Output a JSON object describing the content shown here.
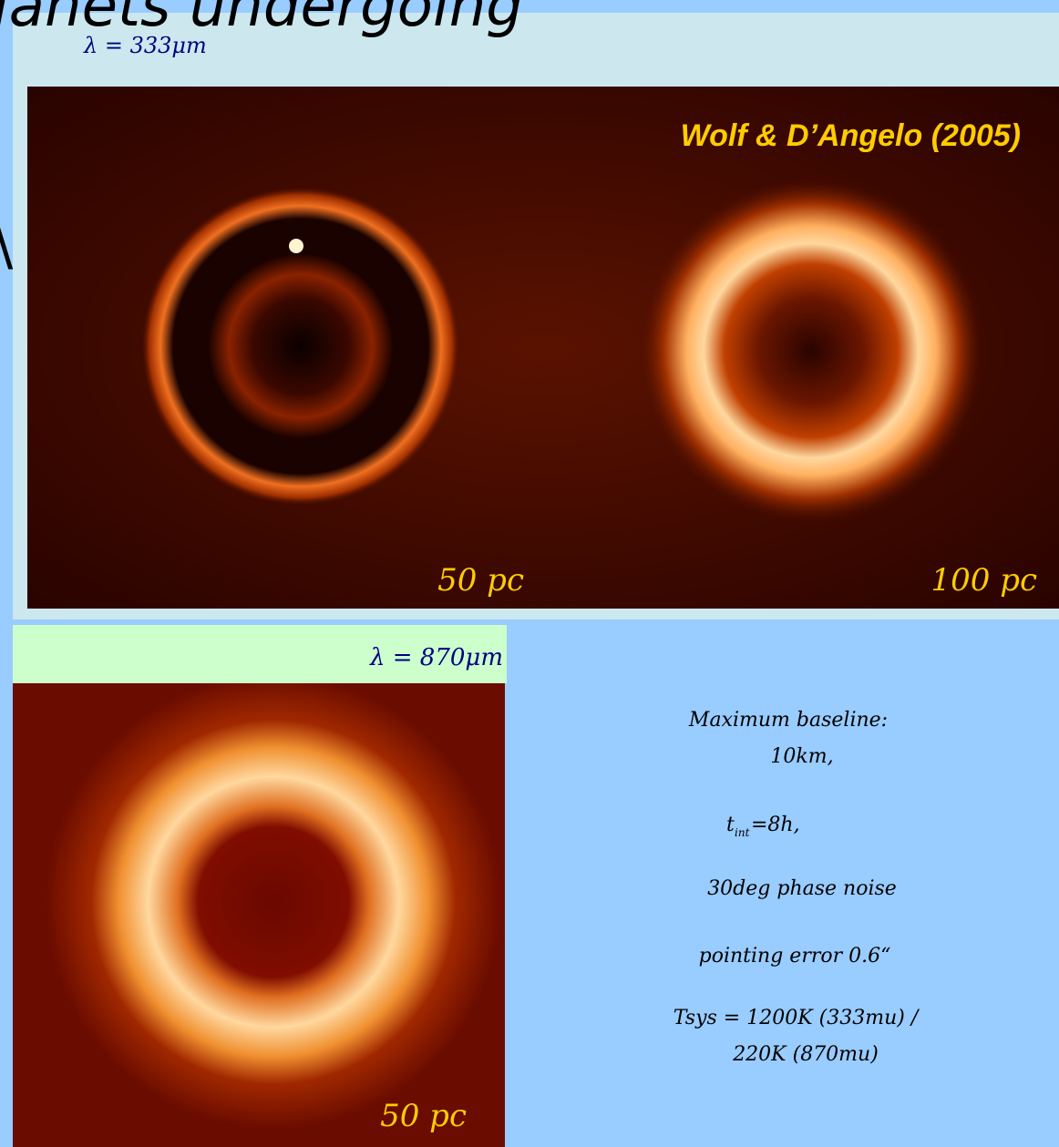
{
  "slide": {
    "title": "lanets undergoing",
    "left_glyph": "\\",
    "top_panel": {
      "wavelength": "λ = 333μm",
      "credit": "Wolf & D’Angelo (2005)",
      "left_distance": "50 pc",
      "right_distance": "100 pc"
    },
    "bottom_panel": {
      "wavelength": "λ = 870μm",
      "distance": "50 pc"
    },
    "notes": {
      "baseline_label": "Maximum baseline:",
      "baseline_value": "10km,",
      "tint_symbol": "t",
      "tint_subscript": "int",
      "tint_value": "=8h,",
      "phase_noise": "30deg phase noise",
      "pointing": "pointing error 0.6“",
      "tsys_1": "Tsys = 1200K (333mu) /",
      "tsys_2": "220K (870mu)"
    }
  }
}
